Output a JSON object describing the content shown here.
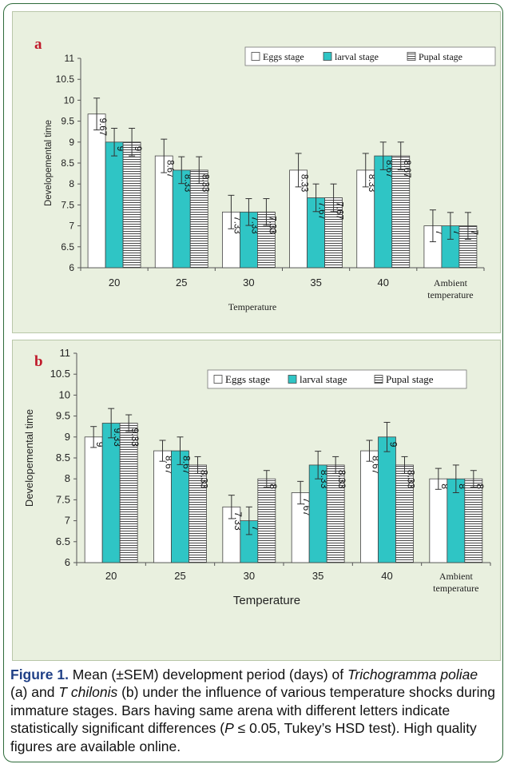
{
  "chart_data": [
    {
      "type": "bar",
      "panel_label": "a",
      "categories": [
        "20",
        "25",
        "30",
        "35",
        "40",
        "Ambient temperature"
      ],
      "series": [
        {
          "name": "Eggs stage",
          "values": [
            9.67,
            8.67,
            7.33,
            8.33,
            8.33,
            7
          ],
          "labels": [
            "9.67",
            "8.67",
            "7.33",
            "8.33",
            "8.33",
            "7"
          ],
          "errors": [
            0.38,
            0.4,
            0.4,
            0.4,
            0.4,
            0.38
          ]
        },
        {
          "name": "larval stage",
          "values": [
            9,
            8.33,
            7.33,
            7.67,
            8.67,
            7
          ],
          "labels": [
            "9",
            "8.33",
            "7.33",
            "7.67",
            "8.67",
            "7"
          ],
          "errors": [
            0.33,
            0.32,
            0.32,
            0.33,
            0.33,
            0.32
          ]
        },
        {
          "name": "Pupal stage",
          "values": [
            9,
            8.33,
            7.33,
            7.67,
            8.67,
            7
          ],
          "labels": [
            "9",
            "8.33",
            "7.33",
            "7.67",
            "8.67",
            "7"
          ],
          "errors": [
            0.33,
            0.32,
            0.32,
            0.33,
            0.33,
            0.32
          ]
        }
      ],
      "xlabel": "Temperature",
      "ylabel": "Developemental time",
      "ylim": [
        6,
        11
      ],
      "yticks": [
        "6",
        "6.5",
        "7",
        "7.5",
        "8",
        "8.5",
        "9",
        "9.5",
        "10",
        "10.5",
        "11"
      ],
      "legend_position": "top-right",
      "grid": false
    },
    {
      "type": "bar",
      "panel_label": "b",
      "categories": [
        "20",
        "25",
        "30",
        "35",
        "40",
        "Ambient temperature"
      ],
      "series": [
        {
          "name": "Eggs stage",
          "values": [
            9,
            8.67,
            7.33,
            7.67,
            8.67,
            8
          ],
          "labels": [
            "9",
            "8.67",
            "7.33",
            "7.67",
            "8.67",
            "8"
          ],
          "errors": [
            0.25,
            0.25,
            0.28,
            0.27,
            0.25,
            0.25
          ]
        },
        {
          "name": "larval stage",
          "values": [
            9.33,
            8.67,
            7,
            8.33,
            9,
            8
          ],
          "labels": [
            "9.33",
            "8.67",
            "7",
            "8.33",
            "9",
            "8"
          ],
          "errors": [
            0.35,
            0.33,
            0.33,
            0.33,
            0.35,
            0.33
          ]
        },
        {
          "name": "Pupal stage",
          "values": [
            9.33,
            8.33,
            8,
            8.33,
            8.33,
            8
          ],
          "labels": [
            "9.33",
            "8.33",
            "8",
            "8.33",
            "8.33",
            "8"
          ],
          "errors": [
            0.2,
            0.2,
            0.2,
            0.2,
            0.2,
            0.2
          ]
        }
      ],
      "xlabel": "Temperature",
      "ylabel": "Developemental time",
      "ylim": [
        6,
        11
      ],
      "yticks": [
        "6",
        "6.5",
        "7",
        "7.5",
        "8",
        "8.5",
        "9",
        "9.5",
        "10",
        "10.5",
        "11"
      ],
      "legend_position": "top-right",
      "grid": false
    }
  ],
  "colors": {
    "eggs_fill": "#ffffff",
    "larval_fill": "#2fc5c5",
    "pupal_fill": "#ffffff",
    "pupal_hatch": "#333333",
    "panel_bg": "#e9f0df",
    "panel_label": "#c0192a",
    "caption_label": "#1f3f86",
    "frame_border": "#2e6b3a"
  },
  "caption": {
    "label": "Figure 1.",
    "part1": " Mean (±SEM) development period (days) of ",
    "species1": "Trichogramma poliae",
    "part2": " (a) and ",
    "species2": "T chilonis",
    "part3": " (b) under the influence of various temperature shocks during immature stages. Bars having same arena with different letters indicate statistically significant differences (",
    "p_symbol": "P",
    "part4": " ≤ 0.05, Tukey’s HSD test). High quality figures are available online."
  }
}
